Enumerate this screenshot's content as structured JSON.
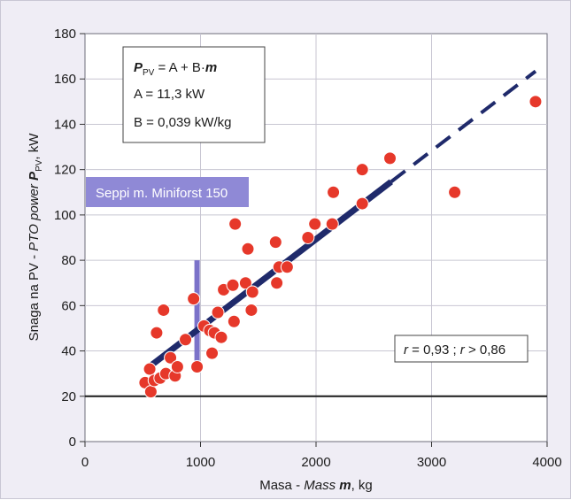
{
  "chart_data": {
    "type": "scatter",
    "title": "",
    "xlabel_parts": {
      "prefix": "Masa - ",
      "italic": "Mass ",
      "symbol": "m",
      "suffix": ", kg"
    },
    "ylabel_parts": {
      "prefix": "Snaga na PV - ",
      "italic": "PTO power ",
      "symbol": "P",
      "subscript": "PV",
      "suffix": ", kW"
    },
    "xlim": [
      0,
      4000
    ],
    "ylim": [
      0,
      180
    ],
    "xticks": [
      0,
      1000,
      2000,
      3000,
      4000
    ],
    "yticks": [
      0,
      20,
      40,
      60,
      80,
      100,
      120,
      140,
      160,
      180
    ],
    "grid": true,
    "colors": {
      "background": "#efedf5",
      "plot_background": "#ffffff",
      "grid": "#c8c6d2",
      "points": "#e6382a",
      "point_edge": "#ffffff",
      "regression_line": "#1f2a6b",
      "reference_line": "#1a1a1a",
      "highlight": "#7b72c9",
      "label_box": "#8f89d6"
    },
    "points": [
      {
        "x": 520,
        "y": 26
      },
      {
        "x": 560,
        "y": 32
      },
      {
        "x": 570,
        "y": 22
      },
      {
        "x": 600,
        "y": 27
      },
      {
        "x": 620,
        "y": 48
      },
      {
        "x": 650,
        "y": 28
      },
      {
        "x": 680,
        "y": 58
      },
      {
        "x": 700,
        "y": 30
      },
      {
        "x": 740,
        "y": 37
      },
      {
        "x": 780,
        "y": 29
      },
      {
        "x": 800,
        "y": 33
      },
      {
        "x": 870,
        "y": 45
      },
      {
        "x": 940,
        "y": 63
      },
      {
        "x": 970,
        "y": 33
      },
      {
        "x": 1030,
        "y": 51
      },
      {
        "x": 1080,
        "y": 49
      },
      {
        "x": 1100,
        "y": 39
      },
      {
        "x": 1120,
        "y": 48
      },
      {
        "x": 1150,
        "y": 57
      },
      {
        "x": 1180,
        "y": 46
      },
      {
        "x": 1200,
        "y": 67
      },
      {
        "x": 1280,
        "y": 69
      },
      {
        "x": 1290,
        "y": 53
      },
      {
        "x": 1300,
        "y": 96
      },
      {
        "x": 1390,
        "y": 70
      },
      {
        "x": 1410,
        "y": 85
      },
      {
        "x": 1440,
        "y": 58
      },
      {
        "x": 1450,
        "y": 66
      },
      {
        "x": 1650,
        "y": 88
      },
      {
        "x": 1660,
        "y": 70
      },
      {
        "x": 1680,
        "y": 77
      },
      {
        "x": 1750,
        "y": 77
      },
      {
        "x": 1930,
        "y": 90
      },
      {
        "x": 1990,
        "y": 96
      },
      {
        "x": 2140,
        "y": 96
      },
      {
        "x": 2150,
        "y": 110
      },
      {
        "x": 2400,
        "y": 105
      },
      {
        "x": 2400,
        "y": 120
      },
      {
        "x": 2640,
        "y": 125
      },
      {
        "x": 3200,
        "y": 110
      },
      {
        "x": 3900,
        "y": 150
      }
    ],
    "regression": {
      "A": 11.3,
      "B": 0.039,
      "solid_range": [
        550,
        2650
      ],
      "dashed_range": [
        2650,
        3900
      ]
    },
    "reference_y": 20,
    "highlight_bar": {
      "x": 970,
      "y_range": [
        33,
        80
      ]
    },
    "annotations": {
      "formula_symbol": "P",
      "formula_sub": "PV",
      "formula_rhs_text": " = A + B·",
      "formula_m": "m",
      "line_a": "A = 11,3 kW",
      "line_b": "B = 0,039 kW/kg",
      "label_tag": "Seppi m. Miniforst 150",
      "r_sym1": "r",
      "r_mid": " = 0,93 ; ",
      "r_sym2": "r",
      "r_end": " > 0,86"
    }
  }
}
